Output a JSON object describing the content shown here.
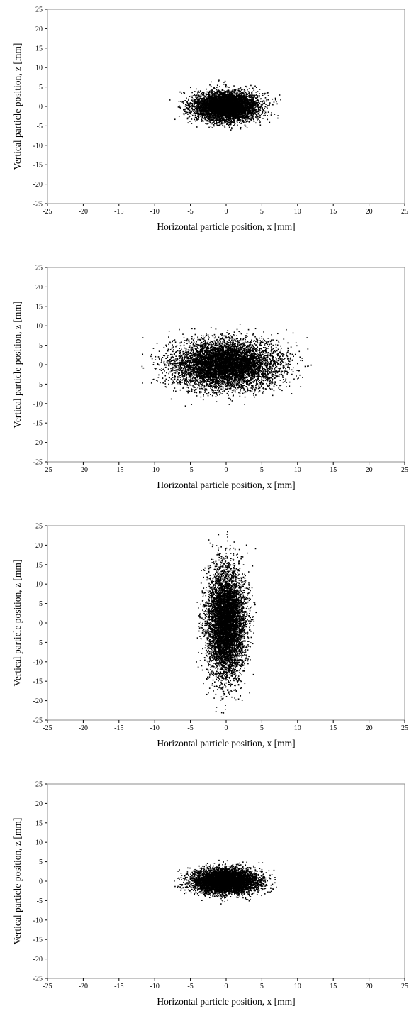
{
  "chart_data": [
    {
      "type": "scatter",
      "xlabel": "Horizontal particle position, x [mm]",
      "ylabel": "Vertical particle position, z [mm]",
      "xlim": [
        -25,
        25
      ],
      "ylim": [
        -25,
        25
      ],
      "xticks": [
        "-25",
        "-20",
        "-15",
        "-10",
        "-5",
        "0",
        "5",
        "10",
        "15",
        "20",
        "25"
      ],
      "yticks": [
        "25",
        "20",
        "15",
        "10",
        "5",
        "0",
        "-5",
        "-10",
        "-15",
        "-20",
        "-25"
      ],
      "grid": false,
      "marker_color": "#000000",
      "distribution": {
        "center": [
          0,
          0
        ],
        "sigma_x": 2.2,
        "sigma_z": 1.8,
        "extent_x": [
          -8,
          8
        ],
        "extent_z": [
          -8,
          8
        ],
        "count": 6000
      }
    },
    {
      "type": "scatter",
      "xlabel": "Horizontal particle position, x [mm]",
      "ylabel": "Vertical particle position, z [mm]",
      "xlim": [
        -25,
        25
      ],
      "ylim": [
        -25,
        25
      ],
      "xticks": [
        "-25",
        "-20",
        "-15",
        "-10",
        "-5",
        "0",
        "5",
        "10",
        "15",
        "20",
        "25"
      ],
      "yticks": [
        "25",
        "20",
        "15",
        "10",
        "5",
        "0",
        "-5",
        "-10",
        "-15",
        "-20",
        "-25"
      ],
      "grid": false,
      "marker_color": "#000000",
      "distribution": {
        "center": [
          0,
          0
        ],
        "sigma_x": 3.6,
        "sigma_z": 3.0,
        "extent_x": [
          -12.5,
          12.5
        ],
        "extent_z": [
          -12.5,
          12.5
        ],
        "count": 7000
      }
    },
    {
      "type": "scatter",
      "xlabel": "Horizontal particle position, x [mm]",
      "ylabel": "Vertical particle position, z [mm]",
      "xlim": [
        -25,
        25
      ],
      "ylim": [
        -25,
        25
      ],
      "xticks": [
        "-25",
        "-20",
        "-15",
        "-10",
        "-5",
        "0",
        "5",
        "10",
        "15",
        "20",
        "25"
      ],
      "yticks": [
        "25",
        "20",
        "15",
        "10",
        "5",
        "0",
        "-5",
        "-10",
        "-15",
        "-20",
        "-25"
      ],
      "grid": false,
      "marker_color": "#000000",
      "distribution": {
        "center": [
          0,
          0
        ],
        "sigma_x": 1.3,
        "sigma_z": 7.0,
        "extent_x": [
          -4.2,
          4.2
        ],
        "extent_z": [
          -24,
          24
        ],
        "count": 6500
      }
    },
    {
      "type": "scatter",
      "xlabel": "Horizontal particle position, x [mm]",
      "ylabel": "Vertical particle position, z [mm]",
      "xlim": [
        -25,
        25
      ],
      "ylim": [
        -25,
        25
      ],
      "xticks": [
        "-25",
        "-20",
        "-15",
        "-10",
        "-5",
        "0",
        "5",
        "10",
        "15",
        "20",
        "25"
      ],
      "yticks": [
        "25",
        "20",
        "15",
        "10",
        "5",
        "0",
        "-5",
        "-10",
        "-15",
        "-20",
        "-25"
      ],
      "grid": false,
      "marker_color": "#000000",
      "distribution": {
        "center": [
          0,
          0
        ],
        "sigma_x": 2.2,
        "sigma_z": 1.5,
        "extent_x": [
          -8,
          8
        ],
        "extent_z": [
          -6.5,
          6.5
        ],
        "count": 6000
      }
    }
  ]
}
